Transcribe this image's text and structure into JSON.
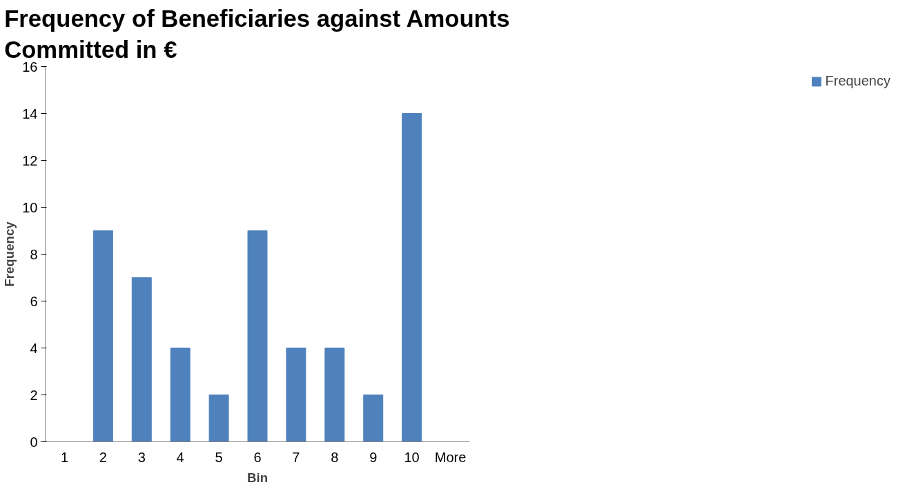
{
  "chart_data": {
    "type": "bar",
    "title": "Frequency of Beneficiaries against Amounts Committed in €",
    "xlabel": "Bin",
    "ylabel": "Frequency",
    "categories": [
      "1",
      "2",
      "3",
      "4",
      "5",
      "6",
      "7",
      "8",
      "9",
      "10",
      "More"
    ],
    "series": [
      {
        "name": "Frequency",
        "color": "#4f81bd",
        "values": [
          0,
          9,
          7,
          4,
          2,
          9,
          4,
          4,
          2,
          14,
          0
        ]
      }
    ],
    "ylim": [
      0,
      16
    ],
    "yticks": [
      0,
      2,
      4,
      6,
      8,
      10,
      12,
      14,
      16
    ],
    "grid": false,
    "legend": "right"
  }
}
